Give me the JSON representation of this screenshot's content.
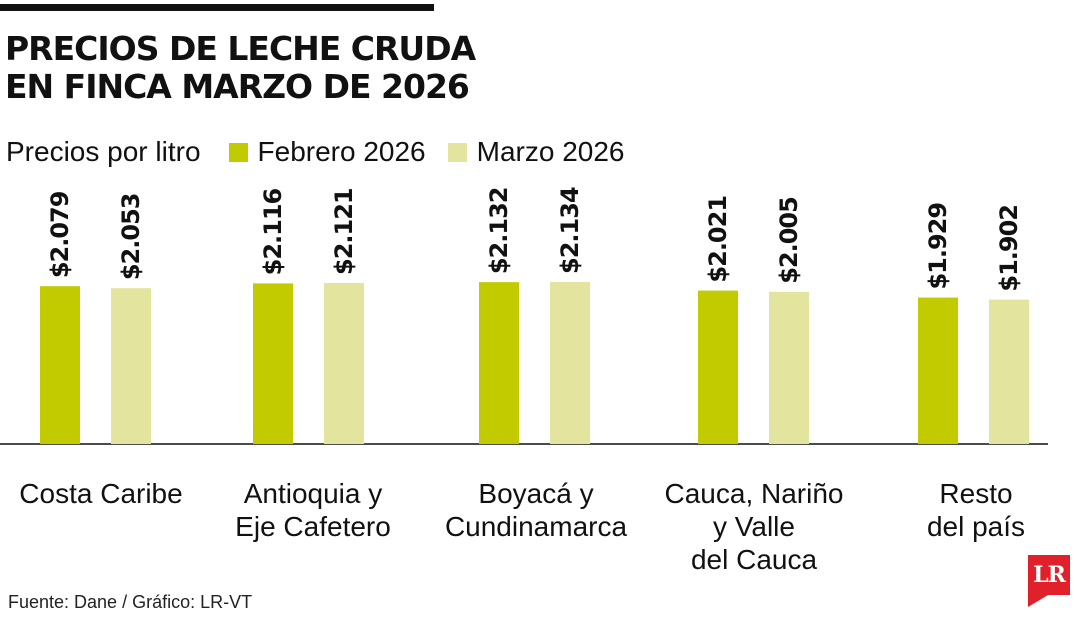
{
  "title_lines": [
    "PRECIOS DE LECHE CRUDA",
    "EN FINCA MARZO DE 2026"
  ],
  "legend": {
    "subtitle": "Precios por litro",
    "items": [
      {
        "label": "Febrero 2026",
        "color": "#c2ca00"
      },
      {
        "label": "Marzo 2026",
        "color": "#e3e59e"
      }
    ]
  },
  "source": "Fuente: Dane / Gráfico: LR-VT",
  "logo": "LR",
  "chart_data": {
    "type": "bar",
    "title": "PRECIOS DE LECHE CRUDA EN FINCA MARZO DE 2026",
    "subtitle": "Precios por litro",
    "categories": [
      [
        "Costa Caribe"
      ],
      [
        "Antioquia y",
        "Eje Cafetero"
      ],
      [
        "Boyacá y",
        "Cundinamarca"
      ],
      [
        "Cauca, Nariño",
        "y Valle",
        "del Cauca"
      ],
      [
        "Resto",
        "del país"
      ]
    ],
    "series": [
      {
        "name": "Febrero 2026",
        "color": "#c2ca00",
        "values": [
          2079,
          2116,
          2132,
          2021,
          1929
        ],
        "labels": [
          "$2.079",
          "$2.116",
          "$2.132",
          "$2.021",
          "$1.929"
        ]
      },
      {
        "name": "Marzo 2026",
        "color": "#e3e59e",
        "values": [
          2053,
          2121,
          2134,
          2005,
          1902
        ],
        "labels": [
          "$2.053",
          "$2.121",
          "$2.134",
          "$2.005",
          "$1.902"
        ]
      }
    ],
    "ylim": [
      0,
      2134
    ],
    "grid": false,
    "legend_position": "top-left"
  }
}
